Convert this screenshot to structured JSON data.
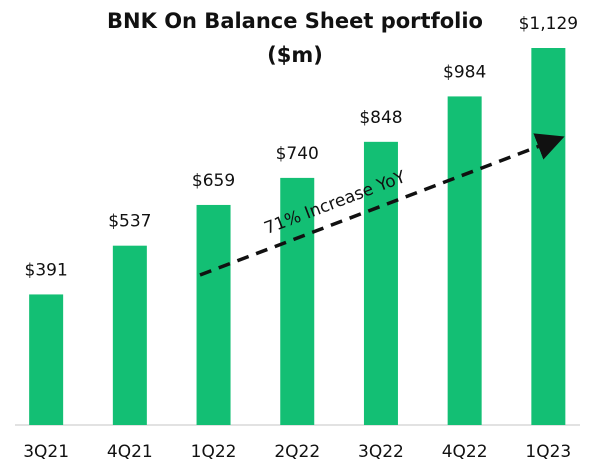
{
  "chart_data": {
    "type": "bar",
    "title": "BNK On Balance Sheet portfolio ($m)",
    "categories": [
      "3Q21",
      "4Q21",
      "1Q22",
      "2Q22",
      "3Q22",
      "4Q22",
      "1Q23"
    ],
    "values": [
      391,
      537,
      659,
      740,
      848,
      984,
      1129
    ],
    "value_labels": [
      "$391",
      "$537",
      "$659",
      "$740",
      "$848",
      "$984",
      "$1,129"
    ],
    "color": "#13bf74",
    "annotation": "71% Increase YoY"
  }
}
